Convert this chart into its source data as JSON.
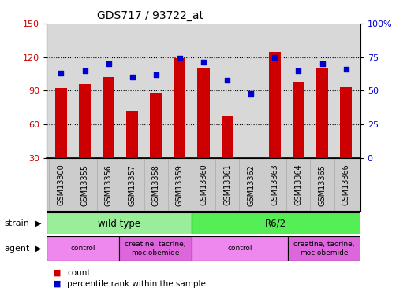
{
  "title": "GDS717 / 93722_at",
  "samples": [
    "GSM13300",
    "GSM13355",
    "GSM13356",
    "GSM13357",
    "GSM13358",
    "GSM13359",
    "GSM13360",
    "GSM13361",
    "GSM13362",
    "GSM13363",
    "GSM13364",
    "GSM13365",
    "GSM13366"
  ],
  "counts": [
    92,
    96,
    102,
    72,
    88,
    119,
    110,
    68,
    30,
    125,
    98,
    110,
    93
  ],
  "percentiles": [
    63,
    65,
    70,
    60,
    62,
    74,
    71,
    58,
    48,
    75,
    65,
    70,
    66
  ],
  "ylim_left": [
    30,
    150
  ],
  "ylim_right": [
    0,
    100
  ],
  "yticks_left": [
    30,
    60,
    90,
    120,
    150
  ],
  "yticks_right": [
    0,
    25,
    50,
    75,
    100
  ],
  "ytick_labels_right": [
    "0",
    "25",
    "50",
    "75",
    "100%"
  ],
  "bar_color": "#cc0000",
  "scatter_color": "#0000cc",
  "grid_color": "#000000",
  "strain_groups": [
    {
      "label": "wild type",
      "start": 0,
      "end": 6,
      "color": "#99ee99"
    },
    {
      "label": "R6/2",
      "start": 6,
      "end": 13,
      "color": "#55ee55"
    }
  ],
  "agent_groups": [
    {
      "label": "control",
      "start": 0,
      "end": 3,
      "color": "#ee88ee"
    },
    {
      "label": "creatine, tacrine,\nmoclobemide",
      "start": 3,
      "end": 6,
      "color": "#dd66dd"
    },
    {
      "label": "control",
      "start": 6,
      "end": 10,
      "color": "#ee88ee"
    },
    {
      "label": "creatine, tacrine,\nmoclobemide",
      "start": 10,
      "end": 13,
      "color": "#dd66dd"
    }
  ],
  "strain_label": "strain",
  "agent_label": "agent",
  "legend_count_label": "count",
  "legend_pct_label": "percentile rank within the sample",
  "background_color": "#ffffff",
  "plot_bg_color": "#d8d8d8",
  "xtick_bg_color": "#cccccc"
}
